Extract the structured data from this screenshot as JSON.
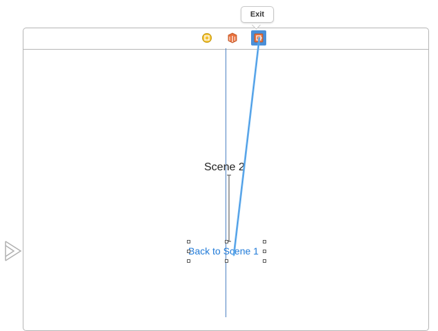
{
  "tooltip": {
    "label": "Exit"
  },
  "scene": {
    "title_label": "Scene 2",
    "button_label": "Back to Scene 1"
  },
  "dock": {
    "icons": [
      "view-controller-icon",
      "first-responder-icon",
      "exit-icon"
    ],
    "exit_selected": true
  },
  "colors": {
    "selection": "#4a8fd8",
    "connection_line": "#6bb5f0",
    "button_text": "#1f7ad8",
    "guide": "#4a7fc1",
    "border": "#b4b4b4"
  }
}
